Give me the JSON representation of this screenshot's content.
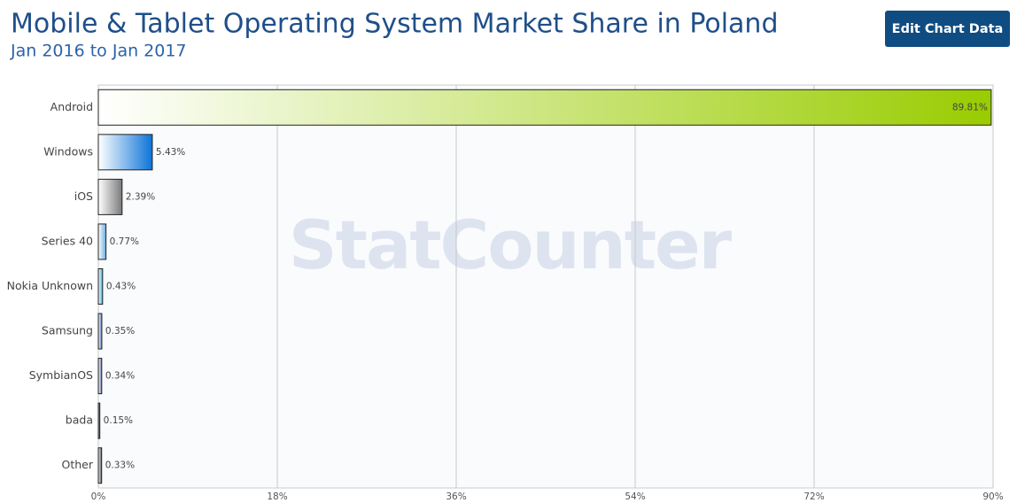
{
  "button": "Edit Chart Data",
  "watermark": "StatCounter",
  "chart_data": {
    "type": "hbar",
    "title": "Mobile & Tablet Operating System Market Share in Poland",
    "subtitle": "Jan 2016 to Jan 2017",
    "categories": [
      "Android",
      "Windows",
      "iOS",
      "Series 40",
      "Nokia Unknown",
      "Samsung",
      "SymbianOS",
      "bada",
      "Other"
    ],
    "values": [
      89.81,
      5.43,
      2.39,
      0.77,
      0.43,
      0.35,
      0.34,
      0.15,
      0.33
    ],
    "value_labels": [
      "89.81%",
      "5.43%",
      "2.39%",
      "0.77%",
      "0.43%",
      "0.35%",
      "0.34%",
      "0.15%",
      "0.33%"
    ],
    "colors": [
      "#99cc00",
      "#0b74d8",
      "#7a7a7a",
      "#6aaee0",
      "#3fb0d8",
      "#5a7fc0",
      "#6b7fb5",
      "#333333",
      "#555555"
    ],
    "xlim": [
      0,
      90
    ],
    "xticks": [
      {
        "value": 0,
        "label": "0%"
      },
      {
        "value": 18,
        "label": "18%"
      },
      {
        "value": 36,
        "label": "36%"
      },
      {
        "value": 54,
        "label": "54%"
      },
      {
        "value": 72,
        "label": "72%"
      },
      {
        "value": 90,
        "label": "90%"
      }
    ],
    "grid": true
  }
}
